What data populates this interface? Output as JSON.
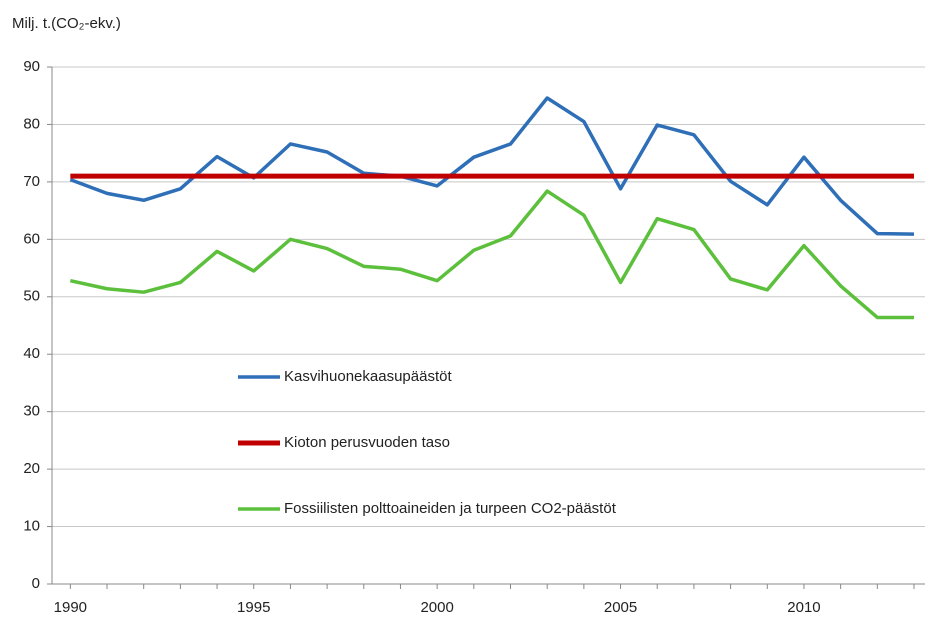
{
  "chart_data": {
    "type": "line",
    "y_axis_label": "Milj. t.(CO₂-ekv.)",
    "x": [
      1990,
      1991,
      1992,
      1993,
      1994,
      1995,
      1996,
      1997,
      1998,
      1999,
      2000,
      2001,
      2002,
      2003,
      2004,
      2005,
      2006,
      2007,
      2008,
      2009,
      2010,
      2011,
      2012,
      2013
    ],
    "series": [
      {
        "name": "Kasvihuonekaasupäästöt",
        "color": "#2e6fb7",
        "width": 3.5,
        "values": [
          70.4,
          68.0,
          66.8,
          68.8,
          74.4,
          70.7,
          76.6,
          75.2,
          71.5,
          71.0,
          69.3,
          74.3,
          76.6,
          84.6,
          80.5,
          68.8,
          79.9,
          78.2,
          70.1,
          66.0,
          74.3,
          66.8,
          61.0,
          60.9
        ]
      },
      {
        "name": "Kioton perusvuoden taso",
        "color": "#c00000",
        "width": 5,
        "values": [
          71,
          71,
          71,
          71,
          71,
          71,
          71,
          71,
          71,
          71,
          71,
          71,
          71,
          71,
          71,
          71,
          71,
          71,
          71,
          71,
          71,
          71,
          71,
          71
        ]
      },
      {
        "name": "Fossiilisten polttoaineiden ja turpeen CO2-päästöt",
        "color": "#5cc03c",
        "width": 3.5,
        "values": [
          52.8,
          51.4,
          50.8,
          52.5,
          57.9,
          54.5,
          60.0,
          58.4,
          55.3,
          54.8,
          52.8,
          58.1,
          60.6,
          68.4,
          64.2,
          52.5,
          63.6,
          61.7,
          53.1,
          51.2,
          58.9,
          51.9,
          46.4,
          46.4
        ]
      }
    ],
    "xlim": [
      1989.5,
      2013.3
    ],
    "xticks": [
      1990,
      1995,
      2000,
      2005,
      2010
    ],
    "ylim": [
      0,
      90
    ],
    "yticks": [
      0,
      10,
      20,
      30,
      40,
      50,
      60,
      70,
      80,
      90
    ],
    "grid": true
  }
}
